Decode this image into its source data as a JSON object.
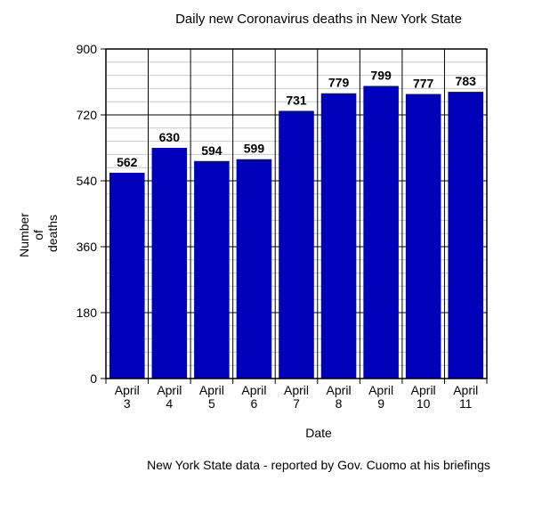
{
  "chart_data": {
    "type": "bar",
    "title": "Daily new Coronavirus deaths in New York State",
    "xlabel": "Date",
    "ylabel": [
      "Number",
      "of",
      "deaths"
    ],
    "ylim": [
      0,
      900
    ],
    "yticks": [
      0,
      180,
      360,
      540,
      720,
      900
    ],
    "grid": true,
    "categories": [
      [
        "April",
        "3"
      ],
      [
        "April",
        "4"
      ],
      [
        "April",
        "5"
      ],
      [
        "April",
        "6"
      ],
      [
        "April",
        "7"
      ],
      [
        "April",
        "8"
      ],
      [
        "April",
        "9"
      ],
      [
        "April",
        "10"
      ],
      [
        "April",
        "11"
      ]
    ],
    "values": [
      562,
      630,
      594,
      599,
      731,
      779,
      799,
      777,
      783
    ],
    "bar_color": "#0000b8",
    "footnote": "New York State data - reported by Gov. Cuomo at his briefings"
  }
}
